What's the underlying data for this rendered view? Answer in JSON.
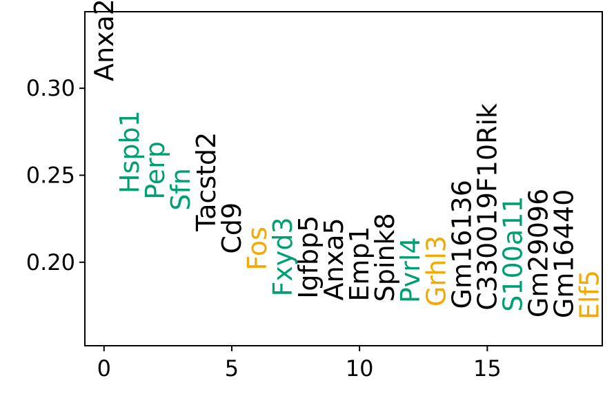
{
  "chart_data": {
    "type": "scatter",
    "title": "",
    "xlabel": "",
    "ylabel": "",
    "xlim": [
      -0.75,
      19.5
    ],
    "ylim": [
      0.152,
      0.344
    ],
    "x_ticks": [
      0,
      5,
      10,
      15
    ],
    "x_tick_labels": [
      "0",
      "5",
      "10",
      "15"
    ],
    "y_ticks": [
      0.2,
      0.25,
      0.3
    ],
    "y_tick_labels": [
      "0.20",
      "0.25",
      "0.30"
    ],
    "grid": false,
    "colors": {
      "black": "#000000",
      "teal": "#009E73",
      "orange": "#F5A800"
    },
    "points": [
      {
        "x": 0,
        "y": 0.304,
        "label": "Anxa2",
        "color": "#000000"
      },
      {
        "x": 1,
        "y": 0.2395,
        "label": "Hspb1",
        "color": "#009E73"
      },
      {
        "x": 2,
        "y": 0.236,
        "label": "Perp",
        "color": "#009E73"
      },
      {
        "x": 3,
        "y": 0.2297,
        "label": "Sfn",
        "color": "#009E73"
      },
      {
        "x": 4,
        "y": 0.2178,
        "label": "Tacstd2",
        "color": "#000000"
      },
      {
        "x": 5,
        "y": 0.2048,
        "label": "Cd9",
        "color": "#000000"
      },
      {
        "x": 6,
        "y": 0.1953,
        "label": "Fos",
        "color": "#F5A800"
      },
      {
        "x": 7,
        "y": 0.1803,
        "label": "Fxyd3",
        "color": "#009E73"
      },
      {
        "x": 8,
        "y": 0.179,
        "label": "Igfbp5",
        "color": "#000000"
      },
      {
        "x": 9,
        "y": 0.178,
        "label": "Anxa5",
        "color": "#000000"
      },
      {
        "x": 10,
        "y": 0.1775,
        "label": "Emp1",
        "color": "#000000"
      },
      {
        "x": 11,
        "y": 0.1772,
        "label": "Spink8",
        "color": "#000000"
      },
      {
        "x": 12,
        "y": 0.1765,
        "label": "Pvrl4",
        "color": "#009E73"
      },
      {
        "x": 13,
        "y": 0.1745,
        "label": "Grhl3",
        "color": "#F5A800"
      },
      {
        "x": 14,
        "y": 0.1732,
        "label": "Gm16136",
        "color": "#000000"
      },
      {
        "x": 15,
        "y": 0.1723,
        "label": "C330019F10Rik",
        "color": "#000000"
      },
      {
        "x": 16,
        "y": 0.1715,
        "label": "S100a11",
        "color": "#009E73"
      },
      {
        "x": 17,
        "y": 0.1682,
        "label": "Gm29096",
        "color": "#000000"
      },
      {
        "x": 18,
        "y": 0.1678,
        "label": "Gm16440",
        "color": "#000000"
      },
      {
        "x": 19,
        "y": 0.167,
        "label": "Elf5",
        "color": "#F5A800"
      }
    ]
  }
}
